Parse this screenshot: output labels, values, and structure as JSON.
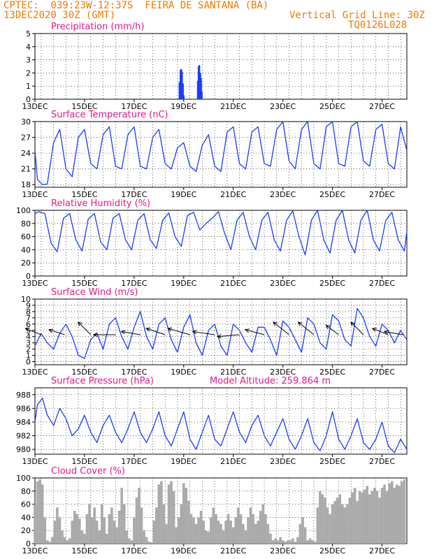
{
  "header": {
    "line1": "CPTEC:  039:23W-12:37S  FEIRA DE SANTANA (BA)",
    "line2": "13DEC2020 30Z (GMT)",
    "grid_note": "Vertical Grid Line: 30Z",
    "model_id": "TQ0126L028"
  },
  "colors": {
    "header": "#f07800",
    "title": "#e8168c",
    "series": "#1a3cff",
    "cloud": "#aaaaaa",
    "wind_arrow": "#000000"
  },
  "chart_data": [
    {
      "type": "bar",
      "title": "Precipitation (mm/h)",
      "x_ticks": [
        "13DEC",
        "15DEC",
        "17DEC",
        "19DEC",
        "21DEC",
        "23DEC",
        "25DEC",
        "27DEC"
      ],
      "x_days_range": [
        13,
        28
      ],
      "ylim": [
        0,
        5
      ],
      "y_ticks": [
        0,
        1,
        2,
        3,
        4,
        5
      ],
      "x_day": [
        18.83,
        18.87,
        18.9,
        18.93,
        18.97,
        19.0,
        19.57,
        19.6,
        19.63,
        19.67,
        19.7,
        19.73
      ],
      "values": [
        1.3,
        2.2,
        2.3,
        2.1,
        1.2,
        0.3,
        1.4,
        2.5,
        2.6,
        2.0,
        1.6,
        0.6
      ]
    },
    {
      "type": "line",
      "title": "Surface Temperature (nC)",
      "x_ticks": [
        "13DEC",
        "15DEC",
        "17DEC",
        "19DEC",
        "21DEC",
        "23DEC",
        "25DEC",
        "27DEC"
      ],
      "ylim": [
        17.5,
        30
      ],
      "y_ticks": [
        18,
        21,
        24,
        27,
        30
      ],
      "x_day": [
        13.0,
        13.1,
        13.3,
        13.5,
        13.75,
        14.0,
        14.25,
        14.5,
        14.75,
        15.0,
        15.25,
        15.5,
        15.75,
        16.0,
        16.25,
        16.5,
        16.75,
        17.0,
        17.25,
        17.5,
        17.75,
        18.0,
        18.25,
        18.5,
        18.75,
        19.0,
        19.25,
        19.5,
        19.75,
        20.0,
        20.25,
        20.5,
        20.75,
        21.0,
        21.25,
        21.5,
        21.75,
        22.0,
        22.25,
        22.5,
        22.75,
        23.0,
        23.25,
        23.5,
        23.75,
        24.0,
        24.25,
        24.5,
        24.75,
        25.0,
        25.25,
        25.5,
        25.75,
        26.0,
        26.25,
        26.5,
        26.75,
        27.0,
        27.25,
        27.5,
        27.75,
        28.0
      ],
      "values": [
        24.5,
        19.0,
        18.0,
        18.1,
        26.0,
        28.5,
        21.0,
        19.5,
        27.0,
        28.5,
        22.0,
        21.0,
        27.5,
        29.0,
        21.5,
        21.0,
        27.5,
        29.0,
        21.5,
        21.0,
        27.0,
        28.5,
        22.0,
        21.0,
        25.0,
        26.0,
        21.5,
        20.5,
        25.5,
        27.5,
        21.5,
        20.5,
        28.0,
        29.0,
        22.0,
        21.0,
        28.0,
        29.0,
        22.0,
        21.5,
        28.5,
        30.0,
        22.5,
        21.0,
        28.5,
        30.0,
        22.0,
        21.0,
        29.0,
        30.0,
        22.0,
        21.5,
        29.0,
        30.0,
        22.5,
        21.5,
        28.5,
        29.5,
        22.0,
        21.0,
        29.0,
        24.5
      ]
    },
    {
      "type": "line",
      "title": "Relative Humidity (%)",
      "x_ticks": [
        "13DEC",
        "15DEC",
        "17DEC",
        "19DEC",
        "21DEC",
        "23DEC",
        "25DEC",
        "27DEC"
      ],
      "ylim": [
        0,
        100
      ],
      "y_ticks": [
        0,
        20,
        40,
        60,
        80,
        100
      ],
      "x_day": [
        13.0,
        13.15,
        13.4,
        13.65,
        13.9,
        14.15,
        14.4,
        14.65,
        14.9,
        15.15,
        15.4,
        15.65,
        15.9,
        16.15,
        16.4,
        16.65,
        16.9,
        17.15,
        17.4,
        17.65,
        17.9,
        18.15,
        18.4,
        18.65,
        18.9,
        19.15,
        19.4,
        19.65,
        19.9,
        20.15,
        20.4,
        20.65,
        20.9,
        21.15,
        21.4,
        21.65,
        21.9,
        22.15,
        22.4,
        22.65,
        22.9,
        23.15,
        23.4,
        23.65,
        23.9,
        24.15,
        24.4,
        24.65,
        24.9,
        25.15,
        25.4,
        25.65,
        25.9,
        26.15,
        26.4,
        26.65,
        26.9,
        27.15,
        27.4,
        27.65,
        27.9,
        28.0
      ],
      "values": [
        95,
        98,
        95,
        50,
        37,
        88,
        95,
        55,
        38,
        87,
        95,
        52,
        40,
        88,
        95,
        55,
        40,
        85,
        95,
        55,
        42,
        85,
        96,
        60,
        45,
        92,
        97,
        70,
        80,
        88,
        98,
        65,
        40,
        85,
        97,
        60,
        40,
        85,
        97,
        55,
        38,
        85,
        99,
        60,
        32,
        85,
        100,
        55,
        35,
        85,
        100,
        55,
        35,
        85,
        100,
        55,
        38,
        85,
        97,
        55,
        38,
        68
      ]
    },
    {
      "type": "line",
      "title": "Surface Wind (m/s)",
      "x_ticks": [
        "13DEC",
        "15DEC",
        "17DEC",
        "19DEC",
        "21DEC",
        "23DEC",
        "25DEC",
        "27DEC"
      ],
      "ylim": [
        -0.5,
        10
      ],
      "y_ticks": [
        0,
        1,
        2,
        3,
        4,
        5,
        6,
        7,
        8,
        9,
        10
      ],
      "x_day": [
        13.0,
        13.25,
        13.5,
        13.75,
        14.0,
        14.25,
        14.5,
        14.75,
        15.0,
        15.25,
        15.5,
        15.75,
        16.0,
        16.25,
        16.5,
        16.75,
        17.0,
        17.25,
        17.5,
        17.75,
        18.0,
        18.25,
        18.5,
        18.75,
        19.0,
        19.25,
        19.5,
        19.75,
        20.0,
        20.25,
        20.5,
        20.75,
        21.0,
        21.25,
        21.5,
        21.75,
        22.0,
        22.25,
        22.5,
        22.75,
        23.0,
        23.25,
        23.5,
        23.75,
        24.0,
        24.25,
        24.5,
        24.75,
        25.0,
        25.25,
        25.5,
        25.75,
        26.0,
        26.25,
        26.5,
        26.75,
        27.0,
        27.25,
        27.5,
        27.75,
        28.0
      ],
      "values": [
        2.5,
        4.5,
        3.0,
        2.0,
        4.5,
        6.0,
        4.0,
        1.0,
        0.5,
        3.5,
        4.5,
        2.0,
        6.0,
        7.0,
        4.0,
        2.0,
        5.5,
        8.0,
        4.0,
        2.0,
        6.0,
        7.0,
        3.5,
        1.5,
        5.5,
        7.5,
        3.0,
        1.0,
        5.0,
        6.0,
        2.5,
        1.0,
        6.0,
        5.0,
        3.0,
        1.5,
        5.5,
        5.5,
        3.5,
        1.0,
        6.5,
        5.5,
        3.5,
        1.5,
        7.0,
        6.0,
        3.0,
        2.0,
        7.5,
        6.5,
        3.5,
        2.5,
        8.5,
        7.0,
        4.0,
        2.5,
        6.0,
        5.0,
        3.0,
        5.0,
        3.5
      ],
      "arrows": [
        {
          "day": 13.25,
          "u": -2.5,
          "v": 1.0
        },
        {
          "day": 14.2,
          "u": -2.5,
          "v": 0.8
        },
        {
          "day": 15.25,
          "u": -2.0,
          "v": 2.0
        },
        {
          "day": 16.25,
          "u": -3.5,
          "v": 0.0
        },
        {
          "day": 17.25,
          "u": -3.0,
          "v": 0.5
        },
        {
          "day": 18.25,
          "u": -3.0,
          "v": 1.0
        },
        {
          "day": 19.25,
          "u": -3.5,
          "v": 1.0
        },
        {
          "day": 20.25,
          "u": -3.5,
          "v": 0.5
        },
        {
          "day": 21.25,
          "u": -3.5,
          "v": -0.3
        },
        {
          "day": 22.25,
          "u": -3.0,
          "v": 0.8
        },
        {
          "day": 23.25,
          "u": -2.5,
          "v": 2.0
        },
        {
          "day": 24.25,
          "u": -2.5,
          "v": 2.0
        },
        {
          "day": 25.25,
          "u": -2.0,
          "v": 1.5
        },
        {
          "day": 26.25,
          "u": -2.0,
          "v": 2.0
        },
        {
          "day": 27.25,
          "u": -2.5,
          "v": 1.0
        },
        {
          "day": 27.85,
          "u": -3.0,
          "v": 0.5
        }
      ]
    },
    {
      "type": "line",
      "title": "Surface Pressure (hPa)",
      "annotation": "Model Altitude: 259.864 m",
      "x_ticks": [
        "13DEC",
        "15DEC",
        "17DEC",
        "19DEC",
        "21DEC",
        "23DEC",
        "25DEC",
        "27DEC"
      ],
      "ylim": [
        979.3,
        989
      ],
      "y_ticks": [
        980,
        982,
        984,
        986,
        988
      ],
      "x_day": [
        13.0,
        13.1,
        13.3,
        13.5,
        13.75,
        14.0,
        14.25,
        14.5,
        14.75,
        15.0,
        15.25,
        15.5,
        15.75,
        16.0,
        16.25,
        16.5,
        16.75,
        17.0,
        17.25,
        17.5,
        17.75,
        18.0,
        18.25,
        18.5,
        18.75,
        19.0,
        19.25,
        19.5,
        19.75,
        20.0,
        20.25,
        20.5,
        20.75,
        21.0,
        21.25,
        21.5,
        21.75,
        22.0,
        22.25,
        22.5,
        22.75,
        23.0,
        23.25,
        23.5,
        23.75,
        24.0,
        24.25,
        24.5,
        24.75,
        25.0,
        25.25,
        25.5,
        25.75,
        26.0,
        26.25,
        26.5,
        26.75,
        27.0,
        27.25,
        27.5,
        27.75,
        28.0
      ],
      "values": [
        984.0,
        986.5,
        987.5,
        985.0,
        983.5,
        986.0,
        984.5,
        982.0,
        983.0,
        985.0,
        982.5,
        981.0,
        983.5,
        985.0,
        982.5,
        981.0,
        983.0,
        985.5,
        982.5,
        981.0,
        983.0,
        985.5,
        982.0,
        980.5,
        983.0,
        985.5,
        981.5,
        980.0,
        982.5,
        985.0,
        981.5,
        980.5,
        983.0,
        985.5,
        982.5,
        981.0,
        983.5,
        985.0,
        982.0,
        980.5,
        982.5,
        984.5,
        981.5,
        980.0,
        982.0,
        984.5,
        981.0,
        979.8,
        982.0,
        985.5,
        981.5,
        980.0,
        982.0,
        984.5,
        981.0,
        980.0,
        981.5,
        984.0,
        980.5,
        979.5,
        981.5,
        980.0
      ]
    },
    {
      "type": "bar",
      "title": "Cloud Cover (%)",
      "x_ticks": [
        "13DEC",
        "15DEC",
        "17DEC",
        "19DEC",
        "21DEC",
        "23DEC",
        "25DEC",
        "27DEC"
      ],
      "ylim": [
        0,
        100
      ],
      "y_ticks": [
        0,
        20,
        40,
        60,
        80,
        100
      ],
      "x_day": [
        13.0,
        13.1,
        13.2,
        13.3,
        13.4,
        13.5,
        13.6,
        13.7,
        13.8,
        13.9,
        14.0,
        14.1,
        14.2,
        14.3,
        14.4,
        14.5,
        14.6,
        14.7,
        14.8,
        14.9,
        15.0,
        15.1,
        15.2,
        15.3,
        15.4,
        15.5,
        15.6,
        15.7,
        15.8,
        15.9,
        16.0,
        16.1,
        16.2,
        16.3,
        16.4,
        16.5,
        16.6,
        16.7,
        16.8,
        16.9,
        17.0,
        17.1,
        17.2,
        17.3,
        17.4,
        17.5,
        17.6,
        17.7,
        17.8,
        17.9,
        18.0,
        18.1,
        18.2,
        18.3,
        18.4,
        18.5,
        18.6,
        18.7,
        18.8,
        18.9,
        19.0,
        19.1,
        19.2,
        19.3,
        19.4,
        19.5,
        19.6,
        19.7,
        19.8,
        19.9,
        20.0,
        20.1,
        20.2,
        20.3,
        20.4,
        20.5,
        20.6,
        20.7,
        20.8,
        20.9,
        21.0,
        21.1,
        21.2,
        21.3,
        21.4,
        21.5,
        21.6,
        21.7,
        21.8,
        21.9,
        22.0,
        22.1,
        22.2,
        22.3,
        22.4,
        22.5,
        22.6,
        22.7,
        22.8,
        22.9,
        23.0,
        23.1,
        23.2,
        23.3,
        23.4,
        23.5,
        23.6,
        23.7,
        23.8,
        23.9,
        24.0,
        24.1,
        24.2,
        24.3,
        24.4,
        24.5,
        24.6,
        24.7,
        24.8,
        24.9,
        25.0,
        25.1,
        25.2,
        25.3,
        25.4,
        25.5,
        25.6,
        25.7,
        25.8,
        25.9,
        26.0,
        26.1,
        26.2,
        26.3,
        26.4,
        26.5,
        26.6,
        26.7,
        26.8,
        26.9,
        27.0,
        27.1,
        27.2,
        27.3,
        27.4,
        27.5,
        27.6,
        27.7,
        27.8,
        27.9
      ],
      "values": [
        60,
        95,
        98,
        90,
        40,
        5,
        3,
        10,
        35,
        55,
        40,
        20,
        10,
        5,
        8,
        35,
        50,
        45,
        38,
        20,
        15,
        45,
        60,
        40,
        55,
        35,
        20,
        60,
        40,
        15,
        45,
        55,
        35,
        25,
        50,
        85,
        60,
        20,
        8,
        5,
        40,
        70,
        85,
        55,
        20,
        10,
        3,
        2,
        35,
        55,
        90,
        95,
        60,
        30,
        90,
        95,
        80,
        25,
        40,
        60,
        92,
        85,
        65,
        45,
        40,
        30,
        40,
        50,
        35,
        20,
        18,
        40,
        55,
        45,
        35,
        30,
        20,
        35,
        45,
        35,
        25,
        40,
        55,
        45,
        30,
        20,
        40,
        55,
        45,
        30,
        35,
        50,
        60,
        45,
        30,
        15,
        5,
        8,
        5,
        10,
        5,
        3,
        5,
        5,
        8,
        3,
        10,
        30,
        40,
        25,
        5,
        8,
        5,
        3,
        55,
        80,
        75,
        70,
        55,
        45,
        60,
        65,
        70,
        75,
        60,
        55,
        60,
        70,
        78,
        85,
        65,
        80,
        78,
        82,
        88,
        75,
        80,
        85,
        80,
        70,
        85,
        90,
        80,
        92,
        95,
        85,
        90,
        88,
        95,
        98
      ]
    }
  ]
}
